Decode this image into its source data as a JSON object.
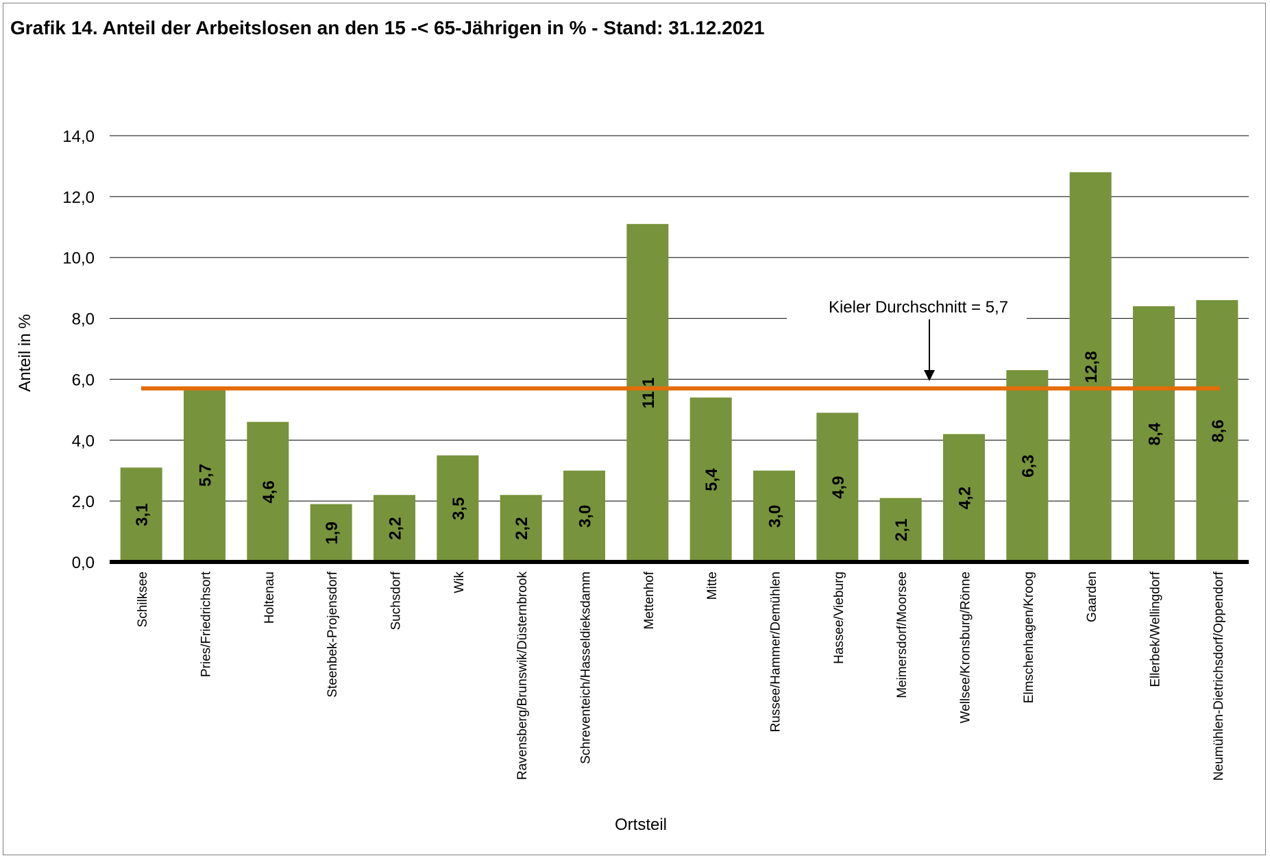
{
  "chart_data": {
    "type": "bar",
    "title": "Grafik 14. Anteil der Arbeitslosen an den 15 -< 65-Jährigen in % - Stand: 31.12.2021",
    "xlabel": "Ortsteil",
    "ylabel": "Anteil in %",
    "ylim": [
      0,
      14
    ],
    "yticks": [
      "0,0",
      "2,0",
      "4,0",
      "6,0",
      "8,0",
      "10,0",
      "12,0",
      "14,0"
    ],
    "grid": true,
    "categories": [
      "Schilksee",
      "Pries/Friedrichsort",
      "Holtenau",
      "Steenbek-Projensdorf",
      "Suchsdorf",
      "Wik",
      "Ravensberg/Brunswik/Düsternbrook",
      "Schreventeich/Hasseldieksdamm",
      "Mettenhof",
      "Mitte",
      "Russee/Hammer/Demühlen",
      "Hassee/Vieburg",
      "Meimersdorf/Moorsee",
      "Wellsee/Kronsburg/Rönne",
      "Elmschenhagen/Kroog",
      "Gaarden",
      "Ellerbek/Wellingdorf",
      "Neumühlen-Dietrichsdorf/Oppendorf"
    ],
    "values": [
      3.1,
      5.7,
      4.6,
      1.9,
      2.2,
      3.5,
      2.2,
      3.0,
      11.1,
      5.4,
      3.0,
      4.9,
      2.1,
      4.2,
      6.3,
      12.8,
      8.4,
      8.6
    ],
    "value_labels": [
      "3,1",
      "5,7",
      "4,6",
      "1,9",
      "2,2",
      "3,5",
      "2,2",
      "3,0",
      "11,1",
      "5,4",
      "3,0",
      "4,9",
      "2,1",
      "4,2",
      "6,3",
      "12,8",
      "8,4",
      "8,6"
    ],
    "reference_line": {
      "value": 5.7,
      "label": "Kieler Durchschnitt = 5,7",
      "color": "#e46c0a"
    },
    "bar_color": "#77933c"
  }
}
